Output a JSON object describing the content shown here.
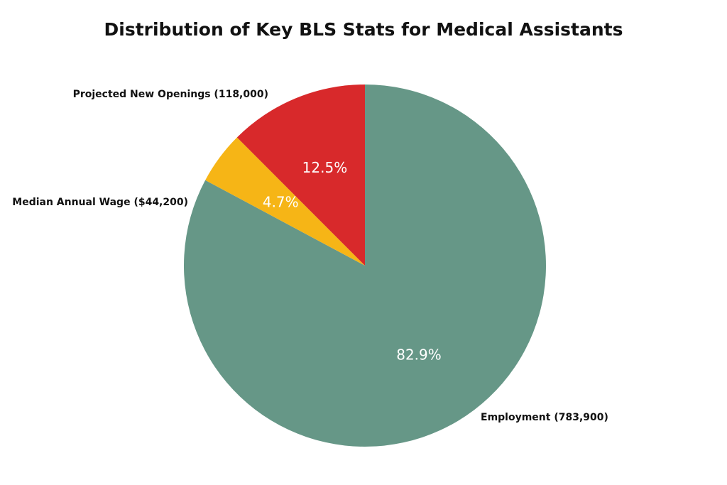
{
  "chart_data": {
    "type": "pie",
    "title": "Distribution of Key BLS Stats for Medical Assistants",
    "slices": [
      {
        "label": "Employment (783,900)",
        "value": 82.9,
        "pct_label": "82.9%",
        "color": "#669787"
      },
      {
        "label": "Median Annual Wage ($44,200)",
        "value": 4.7,
        "pct_label": "4.7%",
        "color": "#f6b516"
      },
      {
        "label": "Projected New Openings (118,000)",
        "value": 12.5,
        "pct_label": "12.5%",
        "color": "#d8292b"
      }
    ]
  }
}
